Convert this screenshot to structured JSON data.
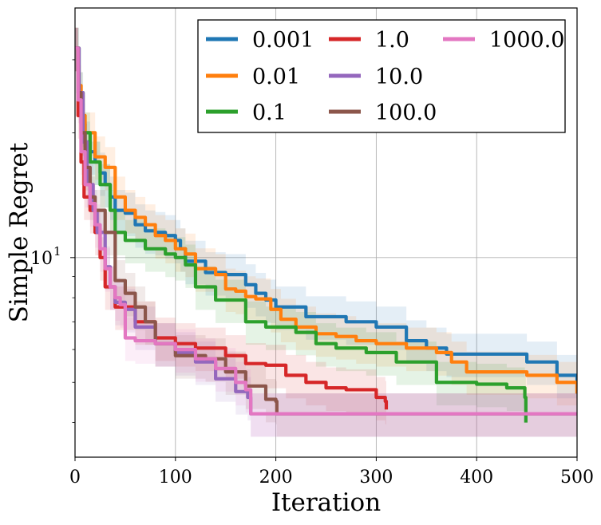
{
  "chart_data": {
    "type": "line",
    "xlabel": "Iteration",
    "ylabel": "Simple Regret",
    "xlim": [
      0,
      500
    ],
    "ylim": [
      3.3,
      40
    ],
    "yscale": "log",
    "x_ticks": [
      0,
      100,
      200,
      300,
      400,
      500
    ],
    "y_ticks": [
      {
        "value": 10,
        "label": "10",
        "exp": "1"
      }
    ],
    "grid": true,
    "legend_placement": "top-right",
    "legend_columns": 3,
    "series": [
      {
        "name": "0.001",
        "color": "#1f77b4",
        "points": [
          [
            0,
            32
          ],
          [
            3,
            25
          ],
          [
            6,
            21
          ],
          [
            10,
            19
          ],
          [
            15,
            18
          ],
          [
            20,
            17
          ],
          [
            25,
            16
          ],
          [
            30,
            15
          ],
          [
            35,
            14
          ],
          [
            40,
            13
          ],
          [
            50,
            12.8
          ],
          [
            60,
            12
          ],
          [
            70,
            11.6
          ],
          [
            80,
            11.5
          ],
          [
            90,
            11.3
          ],
          [
            100,
            11
          ],
          [
            105,
            10.5
          ],
          [
            110,
            9.8
          ],
          [
            130,
            9.2
          ],
          [
            150,
            9.1
          ],
          [
            170,
            8.6
          ],
          [
            180,
            8.2
          ],
          [
            190,
            7.9
          ],
          [
            200,
            7.6
          ],
          [
            230,
            7.2
          ],
          [
            270,
            7.0
          ],
          [
            300,
            6.8
          ],
          [
            330,
            6.3
          ],
          [
            350,
            6.05
          ],
          [
            370,
            5.85
          ],
          [
            400,
            5.85
          ],
          [
            450,
            5.6
          ],
          [
            480,
            5.2
          ],
          [
            500,
            4.7
          ]
        ]
      },
      {
        "name": "0.01",
        "color": "#ff7f0e",
        "points": [
          [
            0,
            32
          ],
          [
            3,
            26
          ],
          [
            6,
            22
          ],
          [
            10,
            20
          ],
          [
            20,
            17.5
          ],
          [
            30,
            16.5
          ],
          [
            40,
            14
          ],
          [
            50,
            13
          ],
          [
            60,
            12.5
          ],
          [
            70,
            12
          ],
          [
            80,
            11.3
          ],
          [
            90,
            11
          ],
          [
            100,
            10.5
          ],
          [
            110,
            10.2
          ],
          [
            120,
            9.4
          ],
          [
            140,
            9.1
          ],
          [
            150,
            8.4
          ],
          [
            160,
            8.3
          ],
          [
            170,
            8.05
          ],
          [
            180,
            7.95
          ],
          [
            195,
            7.5
          ],
          [
            205,
            7.1
          ],
          [
            220,
            6.8
          ],
          [
            240,
            6.55
          ],
          [
            260,
            6.45
          ],
          [
            280,
            6.3
          ],
          [
            300,
            6.2
          ],
          [
            330,
            6.05
          ],
          [
            360,
            5.9
          ],
          [
            375,
            5.6
          ],
          [
            390,
            5.3
          ],
          [
            450,
            5.2
          ],
          [
            480,
            5.0
          ],
          [
            500,
            4.7
          ]
        ]
      },
      {
        "name": "0.1",
        "color": "#2ca02c",
        "points": [
          [
            0,
            32
          ],
          [
            4,
            25
          ],
          [
            8,
            20
          ],
          [
            15,
            17
          ],
          [
            25,
            15
          ],
          [
            35,
            13
          ],
          [
            40,
            11.5
          ],
          [
            50,
            11
          ],
          [
            60,
            11
          ],
          [
            70,
            10.5
          ],
          [
            90,
            10.2
          ],
          [
            100,
            10
          ],
          [
            110,
            9.6
          ],
          [
            120,
            8.5
          ],
          [
            140,
            7.9
          ],
          [
            170,
            7.0
          ],
          [
            190,
            6.8
          ],
          [
            220,
            6.6
          ],
          [
            240,
            6.2
          ],
          [
            260,
            6.05
          ],
          [
            290,
            5.9
          ],
          [
            320,
            5.6
          ],
          [
            360,
            5.0
          ],
          [
            400,
            4.95
          ],
          [
            430,
            4.85
          ],
          [
            448,
            4.6
          ],
          [
            449,
            4.0
          ]
        ]
      },
      {
        "name": "1.0",
        "color": "#d62728",
        "points": [
          [
            0,
            32
          ],
          [
            3,
            22
          ],
          [
            6,
            17
          ],
          [
            9,
            14
          ],
          [
            15,
            13
          ],
          [
            20,
            11.5
          ],
          [
            25,
            10
          ],
          [
            30,
            8.5
          ],
          [
            40,
            7.6
          ],
          [
            60,
            7.0
          ],
          [
            80,
            6.4
          ],
          [
            100,
            6.2
          ],
          [
            120,
            6.05
          ],
          [
            150,
            5.8
          ],
          [
            170,
            5.55
          ],
          [
            190,
            5.5
          ],
          [
            210,
            5.2
          ],
          [
            230,
            5.0
          ],
          [
            250,
            4.85
          ],
          [
            270,
            4.8
          ],
          [
            300,
            4.6
          ],
          [
            309,
            4.5
          ],
          [
            310,
            4.3
          ]
        ]
      },
      {
        "name": "10.0",
        "color": "#9467bd",
        "points": [
          [
            0,
            32
          ],
          [
            4,
            25
          ],
          [
            8,
            19
          ],
          [
            12,
            15
          ],
          [
            18,
            13
          ],
          [
            22,
            11.5
          ],
          [
            30,
            9.5
          ],
          [
            35,
            8.5
          ],
          [
            40,
            7.8
          ],
          [
            50,
            7.5
          ],
          [
            60,
            6.8
          ],
          [
            80,
            6.2
          ],
          [
            100,
            5.9
          ],
          [
            120,
            5.6
          ],
          [
            140,
            5.1
          ],
          [
            160,
            4.75
          ],
          [
            172,
            4.6
          ],
          [
            175,
            4.2
          ],
          [
            500,
            4.2
          ]
        ]
      },
      {
        "name": "100.0",
        "color": "#8c564b",
        "points": [
          [
            0,
            32
          ],
          [
            3,
            25
          ],
          [
            6,
            20
          ],
          [
            10,
            16.5
          ],
          [
            15,
            14
          ],
          [
            20,
            13
          ],
          [
            30,
            11.5
          ],
          [
            40,
            8.8
          ],
          [
            50,
            8.2
          ],
          [
            60,
            7.6
          ],
          [
            70,
            7.0
          ],
          [
            80,
            6.2
          ],
          [
            100,
            5.8
          ],
          [
            130,
            5.7
          ],
          [
            150,
            5.3
          ],
          [
            170,
            4.9
          ],
          [
            180,
            4.9
          ],
          [
            190,
            4.55
          ],
          [
            200,
            4.5
          ],
          [
            201,
            4.2
          ],
          [
            500,
            4.2
          ]
        ]
      },
      {
        "name": "1000.0",
        "color": "#e377c2",
        "points": [
          [
            0,
            32
          ],
          [
            3,
            24
          ],
          [
            6,
            18
          ],
          [
            10,
            15
          ],
          [
            15,
            13.5
          ],
          [
            20,
            12
          ],
          [
            25,
            10.5
          ],
          [
            30,
            9.4
          ],
          [
            35,
            8.5
          ],
          [
            40,
            8.0
          ],
          [
            45,
            7.7
          ],
          [
            50,
            6.4
          ],
          [
            60,
            6.3
          ],
          [
            80,
            6.2
          ],
          [
            100,
            6.0
          ],
          [
            120,
            5.7
          ],
          [
            140,
            5.4
          ],
          [
            160,
            5.0
          ],
          [
            170,
            4.8
          ],
          [
            175,
            4.2
          ],
          [
            500,
            4.2
          ]
        ]
      }
    ]
  }
}
